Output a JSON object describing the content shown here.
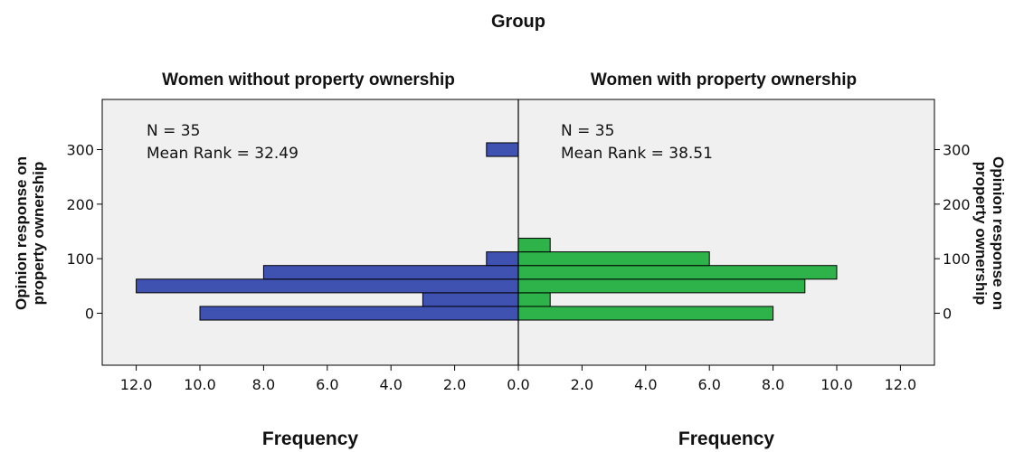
{
  "chart_data": {
    "type": "bar",
    "title": "Group",
    "orientation": "horizontal-back-to-back",
    "ylabel": "Opinion response on property ownership",
    "ylabel_lines": [
      "Opinion response on",
      "property ownership"
    ],
    "y_ticks": [
      0,
      100,
      200,
      300
    ],
    "ylim": [
      -90,
      380
    ],
    "xlim": [
      0,
      12
    ],
    "x_tick_labels": [
      "12.0",
      "10.0",
      "8.0",
      "6.0",
      "4.0",
      "2.0",
      "0.0",
      "2.0",
      "4.0",
      "6.0",
      "8.0",
      "10.0",
      "12.0"
    ],
    "x_ticks": [
      12,
      10,
      8,
      6,
      4,
      2,
      0,
      2,
      4,
      6,
      8,
      10,
      12
    ],
    "bin_width": 25,
    "panels": [
      {
        "name": "Women without property ownership",
        "side": "left",
        "color": "#3f51b1",
        "xlabel": "Frequency",
        "n_label": "N = 35",
        "mean_rank_label": "Mean Rank = 32.49",
        "bins": [
          {
            "y": 0,
            "count": 10
          },
          {
            "y": 25,
            "count": 3
          },
          {
            "y": 50,
            "count": 12
          },
          {
            "y": 75,
            "count": 8
          },
          {
            "y": 100,
            "count": 1
          },
          {
            "y": 300,
            "count": 1
          }
        ]
      },
      {
        "name": "Women with property ownership",
        "side": "right",
        "color": "#2db34a",
        "xlabel": "Frequency",
        "n_label": "N = 35",
        "mean_rank_label": "Mean Rank = 38.51",
        "bins": [
          {
            "y": 0,
            "count": 8
          },
          {
            "y": 25,
            "count": 1
          },
          {
            "y": 50,
            "count": 9
          },
          {
            "y": 75,
            "count": 10
          },
          {
            "y": 100,
            "count": 6
          },
          {
            "y": 125,
            "count": 1
          }
        ]
      }
    ],
    "plot_background": "#f0f0f0",
    "grid": false
  }
}
